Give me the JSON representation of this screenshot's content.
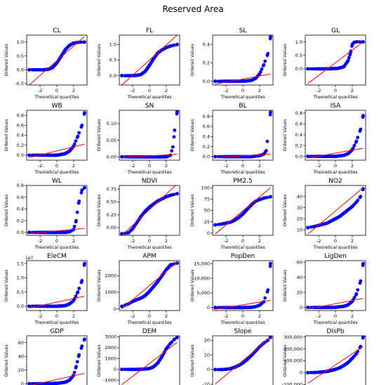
{
  "figure_title": "Reserved Area",
  "common": {
    "xlabel": "Theoretical quantiles",
    "ylabel": "Ordered Values",
    "xticks": [
      -2,
      0,
      2
    ],
    "xlim": [
      -3.6,
      3.6
    ],
    "point_color": "#0000ff",
    "line_color": "#ff0000"
  },
  "chart_data": [
    {
      "type": "scatter",
      "title": "CL",
      "shape": "s",
      "ylim": [
        -0.55,
        1.25
      ],
      "yticks": [
        "-0.5",
        "0.0",
        "0.5",
        "1.0"
      ],
      "ytick_values": [
        -0.5,
        0,
        0.5,
        1.0
      ],
      "series": [
        {
          "x": [
            -3.3,
            -2,
            -1.5,
            -1,
            -0.5,
            0,
            0.5,
            1,
            1.5,
            2,
            2.5,
            3.3
          ],
          "y": [
            0.0,
            0.0,
            0.0,
            0.02,
            0.08,
            0.25,
            0.48,
            0.72,
            0.88,
            0.96,
            0.99,
            1.0
          ]
        }
      ],
      "fit_line": {
        "x": [
          -3.3,
          3.3
        ],
        "y": [
          -0.55,
          1.2
        ]
      }
    },
    {
      "type": "scatter",
      "title": "FL",
      "shape": "s",
      "ylim": [
        -0.3,
        1.3
      ],
      "yticks": [
        "0.0",
        "0.5",
        "1.0"
      ],
      "ytick_values": [
        0,
        0.5,
        1.0
      ],
      "series": [
        {
          "x": [
            -3.3,
            -2,
            -1.5,
            -1,
            -0.5,
            0,
            0.5,
            1,
            1.5,
            2,
            2.5,
            3.3
          ],
          "y": [
            0.0,
            0.0,
            0.01,
            0.04,
            0.14,
            0.33,
            0.55,
            0.73,
            0.83,
            0.9,
            0.95,
            1.0
          ]
        }
      ],
      "fit_line": {
        "x": [
          -3.3,
          3.3
        ],
        "y": [
          -0.3,
          1.3
        ]
      }
    },
    {
      "type": "scatter",
      "title": "SL",
      "shape": "exp",
      "ylim": [
        -0.04,
        0.5
      ],
      "yticks": [
        "0.0",
        "0.2",
        "0.4"
      ],
      "ytick_values": [
        0,
        0.2,
        0.4
      ],
      "series": [
        {
          "x": [
            -3.3,
            -2,
            -1,
            0,
            1,
            1.5,
            2,
            2.5,
            3,
            3.3
          ],
          "y": [
            0.0,
            0.0,
            0.0,
            0.0,
            0.01,
            0.03,
            0.08,
            0.18,
            0.3,
            0.48
          ]
        }
      ],
      "fit_line": {
        "x": [
          -3.3,
          3.3
        ],
        "y": [
          -0.03,
          0.08
        ]
      }
    },
    {
      "type": "scatter",
      "title": "GL",
      "shape": "s",
      "ylim": [
        -0.6,
        1.25
      ],
      "yticks": [
        "0.0",
        "0.5",
        "1.0"
      ],
      "ytick_values": [
        0,
        0.5,
        1.0
      ],
      "series": [
        {
          "x": [
            -3.3,
            -2,
            -1,
            0,
            0.5,
            1,
            1.5,
            1.8,
            2.0,
            2.2,
            2.5,
            3.3
          ],
          "y": [
            0.0,
            0.0,
            0.0,
            0.01,
            0.03,
            0.08,
            0.3,
            0.6,
            0.9,
            0.98,
            1.0,
            1.0
          ]
        }
      ],
      "fit_line": {
        "x": [
          -3.3,
          3.3
        ],
        "y": [
          -0.55,
          1.0
        ]
      }
    },
    {
      "type": "scatter",
      "title": "WB",
      "shape": "exp",
      "ylim": [
        -0.1,
        0.9
      ],
      "yticks": [
        "0.0",
        "0.2",
        "0.4",
        "0.6",
        "0.8"
      ],
      "ytick_values": [
        0,
        0.2,
        0.4,
        0.6,
        0.8
      ],
      "series": [
        {
          "x": [
            -3.3,
            -2,
            -1,
            0,
            1,
            1.5,
            2,
            2.5,
            3,
            3.3
          ],
          "y": [
            0.0,
            0.0,
            0.0,
            0.0,
            0.03,
            0.08,
            0.18,
            0.38,
            0.6,
            0.85
          ]
        }
      ],
      "fit_line": {
        "x": [
          -3.3,
          3.3
        ],
        "y": [
          -0.05,
          0.22
        ]
      }
    },
    {
      "type": "scatter",
      "title": "SN",
      "shape": "exp",
      "ylim": [
        -0.01,
        0.14
      ],
      "yticks": [
        "0.00",
        "0.05",
        "0.10"
      ],
      "ytick_values": [
        0,
        0.05,
        0.1
      ],
      "series": [
        {
          "x": [
            -3.3,
            -2,
            -1,
            0,
            1,
            2,
            2.5,
            2.8,
            3,
            3.3
          ],
          "y": [
            0.0,
            0.0,
            0.0,
            0.0,
            0.0,
            0.0,
            0.005,
            0.03,
            0.08,
            0.135
          ]
        }
      ],
      "fit_line": {
        "x": [
          -3.3,
          3.3
        ],
        "y": [
          -0.002,
          0.008
        ]
      }
    },
    {
      "type": "scatter",
      "title": "BL",
      "shape": "exp",
      "ylim": [
        -0.07,
        0.92
      ],
      "yticks": [
        "0.0",
        "0.2",
        "0.4",
        "0.6",
        "0.8"
      ],
      "ytick_values": [
        0,
        0.2,
        0.4,
        0.6,
        0.8
      ],
      "series": [
        {
          "x": [
            -3.3,
            -2,
            -1,
            0,
            1,
            2,
            2.5,
            2.8,
            3.3
          ],
          "y": [
            0.0,
            0.0,
            0.0,
            0.0,
            0.0,
            0.02,
            0.05,
            0.12,
            0.88
          ]
        }
      ],
      "fit_line": {
        "x": [
          -3.3,
          3.3
        ],
        "y": [
          -0.02,
          0.05
        ]
      }
    },
    {
      "type": "scatter",
      "title": "ISA",
      "shape": "exp",
      "ylim": [
        -0.07,
        0.85
      ],
      "yticks": [
        "0.0",
        "0.2",
        "0.4",
        "0.6",
        "0.8"
      ],
      "ytick_values": [
        0,
        0.2,
        0.4,
        0.6,
        0.8
      ],
      "series": [
        {
          "x": [
            -3.3,
            -2,
            -1,
            0,
            1,
            1.5,
            2,
            2.5,
            3,
            3.3
          ],
          "y": [
            0.0,
            0.0,
            0.0,
            0.0,
            0.02,
            0.05,
            0.12,
            0.28,
            0.5,
            0.75
          ]
        }
      ],
      "fit_line": {
        "x": [
          -3.3,
          3.3
        ],
        "y": [
          -0.03,
          0.15
        ]
      }
    },
    {
      "type": "scatter",
      "title": "WL",
      "shape": "exp",
      "ylim": [
        -0.05,
        0.8
      ],
      "yticks": [
        "0.0",
        "0.2",
        "0.4",
        "0.6",
        "0.8"
      ],
      "ytick_values": [
        0,
        0.2,
        0.4,
        0.6,
        0.8
      ],
      "series": [
        {
          "x": [
            -3.3,
            -2,
            -1,
            0,
            1,
            1.5,
            2,
            2.3,
            2.6,
            3,
            3.3
          ],
          "y": [
            0.0,
            0.0,
            0.0,
            0.0,
            0.0,
            0.01,
            0.05,
            0.2,
            0.5,
            0.72,
            0.76
          ]
        }
      ],
      "fit_line": {
        "x": [
          -3.3,
          3.3
        ],
        "y": [
          -0.02,
          0.07
        ]
      }
    },
    {
      "type": "scatter",
      "title": "NDVI",
      "shape": "s",
      "ylim": [
        -0.15,
        0.82
      ],
      "yticks": [
        "0.00",
        "0.25",
        "0.50",
        "0.75"
      ],
      "ytick_values": [
        0,
        0.25,
        0.5,
        0.75
      ],
      "series": [
        {
          "x": [
            -3.3,
            -2.5,
            -2,
            -1.5,
            -1,
            -0.5,
            0,
            0.5,
            1,
            1.5,
            2,
            2.5,
            3.3
          ],
          "y": [
            -0.12,
            -0.1,
            -0.02,
            0.1,
            0.22,
            0.32,
            0.4,
            0.46,
            0.52,
            0.56,
            0.6,
            0.63,
            0.66
          ]
        }
      ],
      "fit_line": {
        "x": [
          -3.3,
          3.3
        ],
        "y": [
          -0.15,
          0.85
        ]
      }
    },
    {
      "type": "scatter",
      "title": "PM2.5",
      "shape": "s",
      "ylim": [
        -5,
        105
      ],
      "yticks": [
        "0",
        "25",
        "50",
        "75",
        "100"
      ],
      "ytick_values": [
        0,
        25,
        50,
        75,
        100
      ],
      "series": [
        {
          "x": [
            -3.3,
            -2.5,
            -2,
            -1.5,
            -1,
            -0.5,
            0,
            0.5,
            1,
            1.5,
            2,
            2.5,
            3.3
          ],
          "y": [
            18,
            20,
            22,
            24,
            28,
            34,
            42,
            52,
            62,
            70,
            74,
            77,
            80
          ]
        }
      ],
      "fit_line": {
        "x": [
          -3.3,
          3.3
        ],
        "y": [
          -2,
          100
        ]
      }
    },
    {
      "type": "scatter",
      "title": "NO2",
      "shape": "s",
      "ylim": [
        5,
        50
      ],
      "yticks": [
        "10",
        "20",
        "30",
        "40"
      ],
      "ytick_values": [
        10,
        20,
        30,
        40
      ],
      "series": [
        {
          "x": [
            -3.3,
            -2.5,
            -2,
            -1.5,
            -1,
            -0.5,
            0,
            0.5,
            1,
            1.5,
            2,
            2.5,
            3,
            3.3
          ],
          "y": [
            12,
            13,
            14,
            15,
            16,
            18,
            20,
            22,
            25,
            28,
            31,
            35,
            40,
            47
          ]
        }
      ],
      "fit_line": {
        "x": [
          -3.3,
          3.3
        ],
        "y": [
          6,
          48
        ]
      }
    },
    {
      "type": "scatter",
      "title": "EleCM",
      "shape": "exp",
      "ylim": [
        -1500000,
        16000000
      ],
      "yticks": [
        "0.0",
        "0.5",
        "1.0",
        "1.5"
      ],
      "ytick_values": [
        0,
        5000000,
        10000000,
        15000000
      ],
      "multiplier": "1e7",
      "series": [
        {
          "x": [
            -3.3,
            -2,
            -1,
            0,
            1,
            1.5,
            2,
            2.5,
            3,
            3.3
          ],
          "y": [
            0,
            0,
            0,
            0,
            200000,
            800000,
            2000000,
            5000000,
            9000000,
            15000000
          ]
        }
      ],
      "fit_line": {
        "x": [
          -3.3,
          3.3
        ],
        "y": [
          -600000,
          3500000
        ]
      }
    },
    {
      "type": "scatter",
      "title": "APM",
      "shape": "s",
      "ylim": [
        -100,
        2900
      ],
      "yticks": [
        "0",
        "1000",
        "2000"
      ],
      "ytick_values": [
        0,
        1000,
        2000
      ],
      "series": [
        {
          "x": [
            -3.3,
            -2.5,
            -2,
            -1.5,
            -1,
            -0.5,
            0,
            0.5,
            1,
            1.5,
            2,
            2.5,
            3.3
          ],
          "y": [
            150,
            300,
            450,
            550,
            650,
            800,
            1050,
            1350,
            1650,
            2000,
            2350,
            2650,
            2750
          ]
        }
      ],
      "fit_line": {
        "x": [
          -3.3,
          3.3
        ],
        "y": [
          0,
          2800
        ]
      }
    },
    {
      "type": "scatter",
      "title": "PopDen",
      "shape": "exp",
      "ylim": [
        -1000,
        16000
      ],
      "yticks": [
        "0",
        "5,000",
        "10,000",
        "15,000"
      ],
      "ytick_values": [
        0,
        5000,
        10000,
        15000
      ],
      "series": [
        {
          "x": [
            -3.3,
            -2,
            -1,
            0,
            1,
            1.5,
            2,
            2.5,
            3,
            3.3
          ],
          "y": [
            0,
            0,
            0,
            10,
            100,
            300,
            800,
            2000,
            6000,
            15000
          ]
        }
      ],
      "fit_line": {
        "x": [
          -3.3,
          3.3
        ],
        "y": [
          -600,
          2500
        ]
      }
    },
    {
      "type": "scatter",
      "title": "LigDen",
      "shape": "exp",
      "ylim": [
        -4,
        62
      ],
      "yticks": [
        "0",
        "20",
        "40",
        "60"
      ],
      "ytick_values": [
        0,
        20,
        40,
        60
      ],
      "series": [
        {
          "x": [
            -3.3,
            -2,
            -1,
            0,
            1,
            1.5,
            2,
            2.5,
            3,
            3.3
          ],
          "y": [
            0,
            0,
            0,
            0.3,
            1.5,
            3.5,
            8,
            18,
            35,
            58
          ]
        }
      ],
      "fit_line": {
        "x": [
          -3.3,
          3.3
        ],
        "y": [
          -2,
          12
        ]
      }
    },
    {
      "type": "scatter",
      "title": "GDP",
      "shape": "exp",
      "ylim": [
        -3,
        70
      ],
      "yticks": [
        "0",
        "20",
        "40",
        "60"
      ],
      "ytick_values": [
        0,
        20,
        40,
        60
      ],
      "series": [
        {
          "x": [
            -3.3,
            -2,
            -1,
            0,
            1,
            1.5,
            2,
            2.3,
            2.6,
            3,
            3.3
          ],
          "y": [
            0,
            0,
            0,
            0.5,
            2,
            5,
            12,
            25,
            40,
            55,
            65
          ]
        }
      ],
      "fit_line": {
        "x": [
          -3.3,
          3.3
        ],
        "y": [
          -3,
          15
        ]
      }
    },
    {
      "type": "scatter",
      "title": "DEM",
      "shape": "exp",
      "ylim": [
        -1500,
        3100
      ],
      "yticks": [
        "-1000",
        "0",
        "1000",
        "2000",
        "3000"
      ],
      "ytick_values": [
        -1000,
        0,
        1000,
        2000,
        3000
      ],
      "series": [
        {
          "x": [
            -3.3,
            -2,
            -1,
            0,
            0.5,
            1,
            1.5,
            2,
            2.5,
            3,
            3.3
          ],
          "y": [
            0,
            0,
            10,
            80,
            250,
            600,
            1200,
            1900,
            2400,
            2800,
            2950
          ]
        }
      ],
      "fit_line": {
        "x": [
          -3.3,
          3.3
        ],
        "y": [
          -1400,
          2500
        ]
      }
    },
    {
      "type": "scatter",
      "title": "Slope",
      "shape": "s",
      "ylim": [
        -11,
        23
      ],
      "yticks": [
        "-10",
        "0",
        "10",
        "20"
      ],
      "ytick_values": [
        -10,
        0,
        10,
        20
      ],
      "series": [
        {
          "x": [
            -3.3,
            -2.5,
            -2,
            -1.5,
            -1,
            -0.5,
            0,
            0.5,
            1,
            1.5,
            2,
            2.5,
            3,
            3.3
          ],
          "y": [
            0,
            0,
            0.2,
            0.6,
            1.5,
            2.8,
            4.5,
            6.8,
            9.5,
            12.5,
            15.5,
            18,
            20,
            22
          ]
        }
      ],
      "fit_line": {
        "x": [
          -3.3,
          3.3
        ],
        "y": [
          -10,
          22
        ]
      }
    },
    {
      "type": "scatter",
      "title": "DisPb",
      "shape": "exp",
      "ylim": [
        -110000,
        310000
      ],
      "yticks": [
        "-100,000",
        "0",
        "100,000",
        "200,000",
        "300,000"
      ],
      "ytick_values": [
        -100000,
        0,
        100000,
        200000,
        300000
      ],
      "series": [
        {
          "x": [
            -3.3,
            -2.5,
            -2,
            -1.5,
            -1,
            -0.5,
            0,
            0.5,
            1,
            1.5,
            2,
            2.5,
            3,
            3.3
          ],
          "y": [
            0,
            1000,
            3000,
            6000,
            10000,
            18000,
            28000,
            40000,
            60000,
            85000,
            120000,
            160000,
            220000,
            300000
          ]
        }
      ],
      "fit_line": {
        "x": [
          -3.3,
          3.3
        ],
        "y": [
          -90000,
          220000
        ]
      }
    }
  ]
}
